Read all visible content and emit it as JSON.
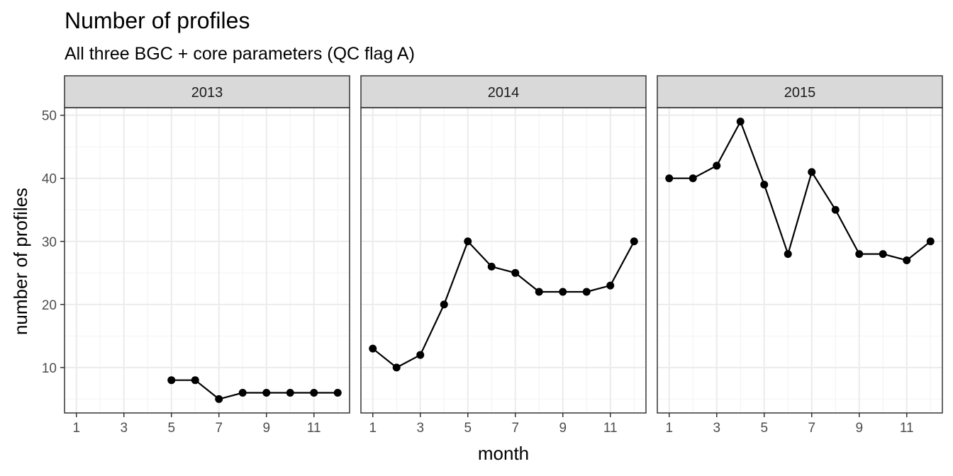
{
  "chart_data": {
    "type": "line",
    "title": "Number of profiles",
    "subtitle": "All three BGC + core parameters (QC flag A)",
    "xlabel": "month",
    "ylabel": "number of profiles",
    "x_ticks": [
      1,
      3,
      5,
      7,
      9,
      11
    ],
    "y_ticks": [
      10,
      20,
      30,
      40,
      50
    ],
    "xlim": [
      0.5,
      12.5
    ],
    "ylim": [
      2.8,
      51.2
    ],
    "grid": true,
    "marker": "point",
    "line_color": "#000000",
    "facets": [
      {
        "label": "2013",
        "points": [
          {
            "x": 5,
            "y": 8
          },
          {
            "x": 6,
            "y": 8
          },
          {
            "x": 7,
            "y": 5
          },
          {
            "x": 8,
            "y": 6
          },
          {
            "x": 9,
            "y": 6
          },
          {
            "x": 10,
            "y": 6
          },
          {
            "x": 11,
            "y": 6
          },
          {
            "x": 12,
            "y": 6
          }
        ]
      },
      {
        "label": "2014",
        "points": [
          {
            "x": 1,
            "y": 13
          },
          {
            "x": 2,
            "y": 10
          },
          {
            "x": 3,
            "y": 12
          },
          {
            "x": 4,
            "y": 20
          },
          {
            "x": 5,
            "y": 30
          },
          {
            "x": 6,
            "y": 26
          },
          {
            "x": 7,
            "y": 25
          },
          {
            "x": 8,
            "y": 22
          },
          {
            "x": 9,
            "y": 22
          },
          {
            "x": 10,
            "y": 22
          },
          {
            "x": 11,
            "y": 23
          },
          {
            "x": 12,
            "y": 30
          }
        ]
      },
      {
        "label": "2015",
        "points": [
          {
            "x": 1,
            "y": 40
          },
          {
            "x": 2,
            "y": 40
          },
          {
            "x": 3,
            "y": 42
          },
          {
            "x": 4,
            "y": 49
          },
          {
            "x": 5,
            "y": 39
          },
          {
            "x": 6,
            "y": 28
          },
          {
            "x": 7,
            "y": 41
          },
          {
            "x": 8,
            "y": 35
          },
          {
            "x": 9,
            "y": 28
          },
          {
            "x": 10,
            "y": 28
          },
          {
            "x": 11,
            "y": 27
          },
          {
            "x": 12,
            "y": 30
          }
        ]
      }
    ]
  }
}
